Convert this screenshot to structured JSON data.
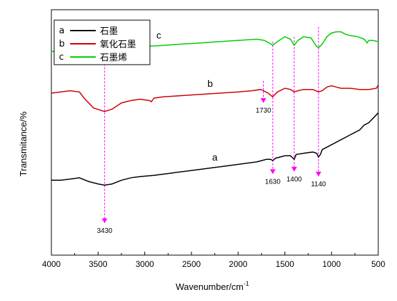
{
  "chart_data": {
    "type": "line",
    "title": "",
    "xlabel": "Wavenumber/cm",
    "xlabel_sup": "-1",
    "ylabel": "Transmitance/%",
    "xlim": [
      4000,
      500
    ],
    "x_ticks": [
      4000,
      3500,
      3000,
      2500,
      2000,
      1500,
      1000,
      500
    ],
    "y_ticks_shown": false,
    "grid": false,
    "legend_position": "top-left",
    "legend": [
      {
        "key": "a",
        "label": "石墨",
        "color": "#000000"
      },
      {
        "key": "b",
        "label": "氧化石墨",
        "color": "#cc0000"
      },
      {
        "key": "c",
        "label": "石墨烯",
        "color": "#00cc00"
      }
    ],
    "series": [
      {
        "name": "c",
        "label": "c",
        "label_x": 2850,
        "color": "#00cc00",
        "points": [
          [
            4000,
            0.83
          ],
          [
            3900,
            0.83
          ],
          [
            3800,
            0.835
          ],
          [
            3700,
            0.84
          ],
          [
            3600,
            0.82
          ],
          [
            3500,
            0.79
          ],
          [
            3430,
            0.78
          ],
          [
            3350,
            0.79
          ],
          [
            3250,
            0.82
          ],
          [
            3100,
            0.84
          ],
          [
            3000,
            0.85
          ],
          [
            2800,
            0.855
          ],
          [
            2600,
            0.86
          ],
          [
            2400,
            0.865
          ],
          [
            2200,
            0.87
          ],
          [
            2000,
            0.875
          ],
          [
            1800,
            0.88
          ],
          [
            1720,
            0.875
          ],
          [
            1650,
            0.86
          ],
          [
            1630,
            0.855
          ],
          [
            1580,
            0.87
          ],
          [
            1500,
            0.89
          ],
          [
            1440,
            0.88
          ],
          [
            1400,
            0.855
          ],
          [
            1360,
            0.875
          ],
          [
            1300,
            0.89
          ],
          [
            1220,
            0.885
          ],
          [
            1160,
            0.85
          ],
          [
            1140,
            0.845
          ],
          [
            1100,
            0.86
          ],
          [
            1050,
            0.89
          ],
          [
            1000,
            0.905
          ],
          [
            950,
            0.91
          ],
          [
            900,
            0.91
          ],
          [
            850,
            0.9
          ],
          [
            800,
            0.895
          ],
          [
            720,
            0.89
          ],
          [
            650,
            0.88
          ],
          [
            620,
            0.865
          ],
          [
            600,
            0.875
          ],
          [
            560,
            0.875
          ],
          [
            500,
            0.87
          ]
        ]
      },
      {
        "name": "b",
        "label": "b",
        "label_x": 2300,
        "color": "#cc0000",
        "points": [
          [
            4000,
            0.66
          ],
          [
            3900,
            0.665
          ],
          [
            3800,
            0.67
          ],
          [
            3700,
            0.665
          ],
          [
            3650,
            0.64
          ],
          [
            3550,
            0.6
          ],
          [
            3430,
            0.585
          ],
          [
            3350,
            0.595
          ],
          [
            3250,
            0.62
          ],
          [
            3150,
            0.63
          ],
          [
            3050,
            0.635
          ],
          [
            2950,
            0.63
          ],
          [
            2930,
            0.625
          ],
          [
            2900,
            0.64
          ],
          [
            2800,
            0.645
          ],
          [
            2600,
            0.65
          ],
          [
            2400,
            0.655
          ],
          [
            2200,
            0.66
          ],
          [
            2000,
            0.665
          ],
          [
            1850,
            0.67
          ],
          [
            1760,
            0.675
          ],
          [
            1730,
            0.67
          ],
          [
            1680,
            0.66
          ],
          [
            1630,
            0.645
          ],
          [
            1580,
            0.665
          ],
          [
            1500,
            0.68
          ],
          [
            1440,
            0.675
          ],
          [
            1400,
            0.665
          ],
          [
            1360,
            0.67
          ],
          [
            1300,
            0.675
          ],
          [
            1200,
            0.675
          ],
          [
            1140,
            0.665
          ],
          [
            1100,
            0.67
          ],
          [
            1050,
            0.685
          ],
          [
            1000,
            0.69
          ],
          [
            950,
            0.685
          ],
          [
            900,
            0.68
          ],
          [
            800,
            0.68
          ],
          [
            700,
            0.675
          ],
          [
            600,
            0.675
          ],
          [
            520,
            0.68
          ],
          [
            505,
            0.69
          ],
          [
            500,
            0.69
          ]
        ]
      },
      {
        "name": "a",
        "label": "a",
        "label_x": 2250,
        "color": "#000000",
        "points": [
          [
            4000,
            0.305
          ],
          [
            3900,
            0.305
          ],
          [
            3800,
            0.31
          ],
          [
            3700,
            0.315
          ],
          [
            3600,
            0.3
          ],
          [
            3500,
            0.29
          ],
          [
            3430,
            0.285
          ],
          [
            3350,
            0.29
          ],
          [
            3250,
            0.305
          ],
          [
            3150,
            0.315
          ],
          [
            3050,
            0.32
          ],
          [
            2900,
            0.325
          ],
          [
            2700,
            0.335
          ],
          [
            2500,
            0.345
          ],
          [
            2300,
            0.355
          ],
          [
            2100,
            0.365
          ],
          [
            1900,
            0.375
          ],
          [
            1800,
            0.38
          ],
          [
            1700,
            0.39
          ],
          [
            1650,
            0.39
          ],
          [
            1630,
            0.385
          ],
          [
            1600,
            0.395
          ],
          [
            1500,
            0.405
          ],
          [
            1440,
            0.405
          ],
          [
            1400,
            0.39
          ],
          [
            1380,
            0.41
          ],
          [
            1300,
            0.415
          ],
          [
            1200,
            0.42
          ],
          [
            1160,
            0.415
          ],
          [
            1140,
            0.4
          ],
          [
            1120,
            0.41
          ],
          [
            1100,
            0.43
          ],
          [
            1000,
            0.45
          ],
          [
            900,
            0.47
          ],
          [
            800,
            0.49
          ],
          [
            700,
            0.51
          ],
          [
            650,
            0.53
          ],
          [
            600,
            0.54
          ],
          [
            550,
            0.56
          ],
          [
            500,
            0.58
          ]
        ]
      }
    ],
    "annotations": [
      {
        "label": "3430",
        "x": 3430,
        "y_start": 0.78,
        "y_end": 0.13,
        "label_position": "below",
        "color": "#ff00ff"
      },
      {
        "label": "1730",
        "x": 1730,
        "y_start": 0.71,
        "y_end": 0.62,
        "label_position": "below",
        "color": "#ff00ff"
      },
      {
        "label": "1630",
        "x": 1630,
        "y_start": 0.87,
        "y_end": 0.33,
        "label_position": "below",
        "color": "#ff00ff"
      },
      {
        "label": "1400",
        "x": 1400,
        "y_start": 0.89,
        "y_end": 0.34,
        "label_position": "below",
        "color": "#ff00ff"
      },
      {
        "label": "1140",
        "x": 1140,
        "y_start": 0.93,
        "y_end": 0.32,
        "label_position": "below",
        "color": "#ff00ff"
      }
    ]
  }
}
